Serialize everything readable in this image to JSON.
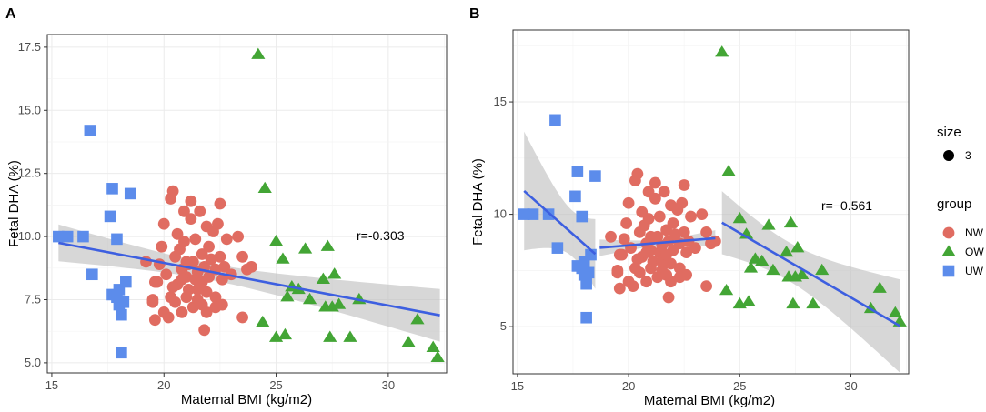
{
  "chart_data": [
    {
      "panel": "A",
      "type": "scatter",
      "xlabel": "Maternal BMI (kg/m2)",
      "ylabel": "Fetal DHA (%)",
      "xlim": [
        14.8,
        32.6
      ],
      "ylim": [
        4.6,
        18.0
      ],
      "xticks": [
        15,
        20,
        25,
        30
      ],
      "yticks": [
        5.0,
        7.5,
        10.0,
        12.5,
        15.0,
        17.5
      ],
      "ytick_labels": [
        "5.0",
        "7.5",
        "10.0",
        "12.5",
        "15.0",
        "17.5"
      ],
      "annotation": {
        "text": "r=-0.303",
        "x": 30.0,
        "y": 9.9
      },
      "series": [
        {
          "name": "NW",
          "shape": "circle",
          "points": [
            [
              19.2,
              9.0
            ],
            [
              19.5,
              7.4
            ],
            [
              19.6,
              6.7
            ],
            [
              19.7,
              8.2
            ],
            [
              19.9,
              9.6
            ],
            [
              20.0,
              10.5
            ],
            [
              20.0,
              7.0
            ],
            [
              20.1,
              8.5
            ],
            [
              20.2,
              6.8
            ],
            [
              20.3,
              7.6
            ],
            [
              20.3,
              11.5
            ],
            [
              20.4,
              11.8
            ],
            [
              20.5,
              9.2
            ],
            [
              20.5,
              7.4
            ],
            [
              20.6,
              8.1
            ],
            [
              20.6,
              10.1
            ],
            [
              20.7,
              9.5
            ],
            [
              20.8,
              8.7
            ],
            [
              20.8,
              7.0
            ],
            [
              20.9,
              9.8
            ],
            [
              20.9,
              11.0
            ],
            [
              21.0,
              7.6
            ],
            [
              21.0,
              8.4
            ],
            [
              21.1,
              8.9
            ],
            [
              21.1,
              7.9
            ],
            [
              21.2,
              10.7
            ],
            [
              21.2,
              11.4
            ],
            [
              21.3,
              9.0
            ],
            [
              21.3,
              7.2
            ],
            [
              21.4,
              8.3
            ],
            [
              21.4,
              9.9
            ],
            [
              21.5,
              8.6
            ],
            [
              21.5,
              7.5
            ],
            [
              21.6,
              11.0
            ],
            [
              21.6,
              8.0
            ],
            [
              21.7,
              9.3
            ],
            [
              21.7,
              7.3
            ],
            [
              21.8,
              8.8
            ],
            [
              21.8,
              6.3
            ],
            [
              21.9,
              10.4
            ],
            [
              21.9,
              7.8
            ],
            [
              22.0,
              9.6
            ],
            [
              22.0,
              8.4
            ],
            [
              22.1,
              9.1
            ],
            [
              22.2,
              10.2
            ],
            [
              22.3,
              7.6
            ],
            [
              22.3,
              8.7
            ],
            [
              22.4,
              10.5
            ],
            [
              22.5,
              9.2
            ],
            [
              22.6,
              8.3
            ],
            [
              22.6,
              7.3
            ],
            [
              22.7,
              8.8
            ],
            [
              22.8,
              9.9
            ],
            [
              23.0,
              8.5
            ],
            [
              23.3,
              10.0
            ],
            [
              23.5,
              6.8
            ],
            [
              23.5,
              9.2
            ],
            [
              23.7,
              8.7
            ],
            [
              23.9,
              8.8
            ],
            [
              19.5,
              7.5
            ],
            [
              19.6,
              8.2
            ],
            [
              19.8,
              8.9
            ],
            [
              20.8,
              8.3
            ],
            [
              21.5,
              7.9
            ],
            [
              22.5,
              11.3
            ],
            [
              22.3,
              7.2
            ],
            [
              21.9,
              7.0
            ],
            [
              21.7,
              8.2
            ],
            [
              21.0,
              9.0
            ],
            [
              20.4,
              8.0
            ]
          ]
        },
        {
          "name": "OW",
          "shape": "triangle",
          "points": [
            [
              24.2,
              17.2
            ],
            [
              24.5,
              11.9
            ],
            [
              24.4,
              6.6
            ],
            [
              25.0,
              6.0
            ],
            [
              25.0,
              9.8
            ],
            [
              25.3,
              9.1
            ],
            [
              25.4,
              6.1
            ],
            [
              25.5,
              7.6
            ],
            [
              25.7,
              8.0
            ],
            [
              26.0,
              7.9
            ],
            [
              26.3,
              9.5
            ],
            [
              26.5,
              7.5
            ],
            [
              27.1,
              8.3
            ],
            [
              27.2,
              7.2
            ],
            [
              27.3,
              9.6
            ],
            [
              27.4,
              6.0
            ],
            [
              27.5,
              7.2
            ],
            [
              27.6,
              8.5
            ],
            [
              27.8,
              7.3
            ],
            [
              28.3,
              6.0
            ],
            [
              28.7,
              7.5
            ],
            [
              30.9,
              5.8
            ],
            [
              31.3,
              6.7
            ],
            [
              32.0,
              5.6
            ],
            [
              32.2,
              5.2
            ]
          ]
        },
        {
          "name": "UW",
          "shape": "square",
          "points": [
            [
              15.3,
              10.0
            ],
            [
              15.7,
              10.0
            ],
            [
              16.4,
              10.0
            ],
            [
              16.7,
              14.2
            ],
            [
              16.8,
              8.5
            ],
            [
              17.6,
              10.8
            ],
            [
              17.7,
              7.7
            ],
            [
              17.7,
              11.9
            ],
            [
              17.9,
              9.9
            ],
            [
              17.9,
              7.6
            ],
            [
              18.0,
              7.9
            ],
            [
              18.0,
              7.3
            ],
            [
              18.1,
              5.4
            ],
            [
              18.1,
              6.9
            ],
            [
              18.2,
              7.4
            ],
            [
              18.3,
              8.2
            ],
            [
              18.5,
              11.7
            ]
          ]
        }
      ]
    },
    {
      "panel": "B",
      "type": "scatter",
      "xlabel": "Maternal BMI (kg/m2)",
      "ylabel": "Fetal DHA (%)",
      "xlim": [
        14.8,
        32.6
      ],
      "ylim": [
        2.9,
        18.2
      ],
      "xticks": [
        15,
        20,
        25,
        30
      ],
      "yticks": [
        5,
        10,
        15
      ],
      "ytick_labels": [
        "5",
        "10",
        "15"
      ],
      "annotation": {
        "text": "r=−0.561",
        "x": 29.7,
        "y": 10.0
      },
      "series": [
        {
          "name": "NW",
          "shape": "circle",
          "points": [
            [
              19.2,
              9.0
            ],
            [
              19.5,
              7.4
            ],
            [
              19.6,
              6.7
            ],
            [
              19.7,
              8.2
            ],
            [
              19.9,
              9.6
            ],
            [
              20.0,
              10.5
            ],
            [
              20.0,
              7.0
            ],
            [
              20.1,
              8.5
            ],
            [
              20.2,
              6.8
            ],
            [
              20.3,
              7.6
            ],
            [
              20.3,
              11.5
            ],
            [
              20.4,
              11.8
            ],
            [
              20.5,
              9.2
            ],
            [
              20.5,
              7.4
            ],
            [
              20.6,
              8.1
            ],
            [
              20.6,
              10.1
            ],
            [
              20.7,
              9.5
            ],
            [
              20.8,
              8.7
            ],
            [
              20.8,
              7.0
            ],
            [
              20.9,
              9.8
            ],
            [
              20.9,
              11.0
            ],
            [
              21.0,
              7.6
            ],
            [
              21.0,
              8.4
            ],
            [
              21.1,
              8.9
            ],
            [
              21.1,
              7.9
            ],
            [
              21.2,
              10.7
            ],
            [
              21.2,
              11.4
            ],
            [
              21.3,
              9.0
            ],
            [
              21.3,
              7.2
            ],
            [
              21.4,
              8.3
            ],
            [
              21.4,
              9.9
            ],
            [
              21.5,
              8.6
            ],
            [
              21.5,
              7.5
            ],
            [
              21.6,
              11.0
            ],
            [
              21.6,
              8.0
            ],
            [
              21.7,
              9.3
            ],
            [
              21.7,
              7.3
            ],
            [
              21.8,
              8.8
            ],
            [
              21.8,
              6.3
            ],
            [
              21.9,
              10.4
            ],
            [
              21.9,
              7.8
            ],
            [
              22.0,
              9.6
            ],
            [
              22.0,
              8.4
            ],
            [
              22.1,
              9.1
            ],
            [
              22.2,
              10.2
            ],
            [
              22.3,
              7.6
            ],
            [
              22.3,
              8.7
            ],
            [
              22.4,
              10.5
            ],
            [
              22.5,
              9.2
            ],
            [
              22.6,
              8.3
            ],
            [
              22.6,
              7.3
            ],
            [
              22.7,
              8.8
            ],
            [
              22.8,
              9.9
            ],
            [
              23.0,
              8.5
            ],
            [
              23.3,
              10.0
            ],
            [
              23.5,
              6.8
            ],
            [
              23.5,
              9.2
            ],
            [
              23.7,
              8.7
            ],
            [
              23.9,
              8.8
            ],
            [
              19.5,
              7.5
            ],
            [
              19.6,
              8.2
            ],
            [
              19.8,
              8.9
            ],
            [
              20.8,
              8.3
            ],
            [
              21.5,
              7.9
            ],
            [
              22.5,
              11.3
            ],
            [
              22.3,
              7.2
            ],
            [
              21.9,
              7.0
            ],
            [
              21.7,
              8.2
            ],
            [
              21.0,
              9.0
            ],
            [
              20.4,
              8.0
            ]
          ]
        },
        {
          "name": "OW",
          "shape": "triangle",
          "points": [
            [
              24.2,
              17.2
            ],
            [
              24.5,
              11.9
            ],
            [
              24.4,
              6.6
            ],
            [
              25.0,
              6.0
            ],
            [
              25.0,
              9.8
            ],
            [
              25.3,
              9.1
            ],
            [
              25.4,
              6.1
            ],
            [
              25.5,
              7.6
            ],
            [
              25.7,
              8.0
            ],
            [
              26.0,
              7.9
            ],
            [
              26.3,
              9.5
            ],
            [
              26.5,
              7.5
            ],
            [
              27.1,
              8.3
            ],
            [
              27.2,
              7.2
            ],
            [
              27.3,
              9.6
            ],
            [
              27.4,
              6.0
            ],
            [
              27.5,
              7.2
            ],
            [
              27.6,
              8.5
            ],
            [
              27.8,
              7.3
            ],
            [
              28.3,
              6.0
            ],
            [
              28.7,
              7.5
            ],
            [
              30.9,
              5.8
            ],
            [
              31.3,
              6.7
            ],
            [
              32.0,
              5.6
            ],
            [
              32.2,
              5.2
            ]
          ]
        },
        {
          "name": "UW",
          "shape": "square",
          "points": [
            [
              15.3,
              10.0
            ],
            [
              15.7,
              10.0
            ],
            [
              16.4,
              10.0
            ],
            [
              16.7,
              14.2
            ],
            [
              16.8,
              8.5
            ],
            [
              17.6,
              10.8
            ],
            [
              17.7,
              7.7
            ],
            [
              17.7,
              11.9
            ],
            [
              17.9,
              9.9
            ],
            [
              17.9,
              7.6
            ],
            [
              18.0,
              7.9
            ],
            [
              18.0,
              7.3
            ],
            [
              18.1,
              5.4
            ],
            [
              18.1,
              6.9
            ],
            [
              18.2,
              7.4
            ],
            [
              18.3,
              8.2
            ],
            [
              18.5,
              11.7
            ]
          ]
        }
      ]
    }
  ],
  "legend": {
    "size_title": "size",
    "size_value": "3",
    "group_title": "group",
    "items": [
      {
        "label": "NW",
        "shape": "circle",
        "color": "#E06C61"
      },
      {
        "label": "OW",
        "shape": "triangle",
        "color": "#43A535"
      },
      {
        "label": "UW",
        "shape": "square",
        "color": "#5C8CEB"
      }
    ]
  },
  "colors": {
    "NW": "#E06C61",
    "OW": "#43A535",
    "UW": "#5C8CEB",
    "fit_line": "#3D5FE0",
    "ci_band": "#BEBEBE"
  }
}
